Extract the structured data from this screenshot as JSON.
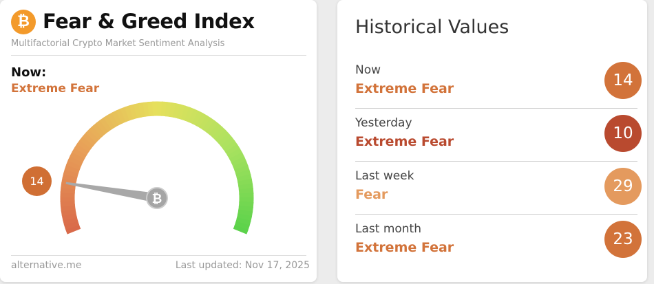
{
  "gauge_card": {
    "logo_icon": "bitcoin-icon",
    "title": "Fear & Greed Index",
    "subtitle": "Multifactorial Crypto Market Sentiment Analysis",
    "now_label": "Now:",
    "now_classification": "Extreme Fear",
    "value": "14",
    "gauge_min": 0,
    "gauge_max": 100,
    "value_color": "#d06f34",
    "source": "alternative.me",
    "last_updated": "Last updated: Nov 17, 2025"
  },
  "history": {
    "title": "Historical Values",
    "rows": [
      {
        "label": "Now",
        "classification": "Extreme Fear",
        "value": "14",
        "color": "#d2733a"
      },
      {
        "label": "Yesterday",
        "classification": "Extreme Fear",
        "value": "10",
        "color": "#b94a2f"
      },
      {
        "label": "Last week",
        "classification": "Fear",
        "value": "29",
        "color": "#e49a5e"
      },
      {
        "label": "Last month",
        "classification": "Extreme Fear",
        "value": "23",
        "color": "#d2733a"
      }
    ]
  }
}
